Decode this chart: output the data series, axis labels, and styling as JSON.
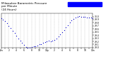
{
  "title": "Milwaukee Barometric Pressure\nper Minute\n(24 Hours)",
  "title_fontsize": 3.0,
  "bg_color": "#ffffff",
  "dot_color": "#0000cc",
  "dot_size": 0.8,
  "legend_color": "#0000ff",
  "ylim": [
    29.0,
    30.1
  ],
  "xlim": [
    0,
    1440
  ],
  "yticks": [
    29.0,
    29.1,
    29.2,
    29.3,
    29.4,
    29.5,
    29.6,
    29.7,
    29.8,
    29.9,
    30.0
  ],
  "xtick_positions": [
    0,
    60,
    120,
    180,
    240,
    300,
    360,
    420,
    480,
    540,
    600,
    660,
    720,
    780,
    840,
    900,
    960,
    1020,
    1080,
    1140,
    1200,
    1260,
    1320,
    1380,
    1440
  ],
  "xtick_labels": [
    "12a",
    "1",
    "2",
    "3",
    "4",
    "5",
    "6",
    "7",
    "8",
    "9",
    "10",
    "11",
    "12p",
    "1",
    "2",
    "3",
    "4",
    "5",
    "6",
    "7",
    "8",
    "9",
    "10",
    "11",
    "12a"
  ],
  "grid_color": "#999999",
  "grid_style": "--",
  "grid_linewidth": 0.25,
  "grid_alpha": 0.8,
  "x_data": [
    0,
    30,
    60,
    90,
    120,
    150,
    180,
    210,
    240,
    270,
    300,
    330,
    360,
    390,
    420,
    450,
    480,
    510,
    540,
    570,
    600,
    630,
    660,
    690,
    720,
    750,
    780,
    810,
    840,
    870,
    900,
    930,
    960,
    990,
    1020,
    1050,
    1080,
    1110,
    1140,
    1170,
    1200,
    1230,
    1260,
    1290,
    1320,
    1350,
    1380,
    1410,
    1440
  ],
  "y_data": [
    29.95,
    29.9,
    29.85,
    29.78,
    29.7,
    29.63,
    29.55,
    29.47,
    29.38,
    29.3,
    29.22,
    29.15,
    29.08,
    29.02,
    29.0,
    29.0,
    29.02,
    29.05,
    29.05,
    29.07,
    29.1,
    29.12,
    29.15,
    29.18,
    29.2,
    29.22,
    29.2,
    29.22,
    29.25,
    29.3,
    29.35,
    29.42,
    29.5,
    29.57,
    29.65,
    29.73,
    29.8,
    29.87,
    29.93,
    29.97,
    30.0,
    30.01,
    30.0,
    29.99,
    29.98,
    29.97,
    29.96,
    29.96,
    29.95
  ],
  "tick_fontsize": 2.2,
  "spine_linewidth": 0.3
}
